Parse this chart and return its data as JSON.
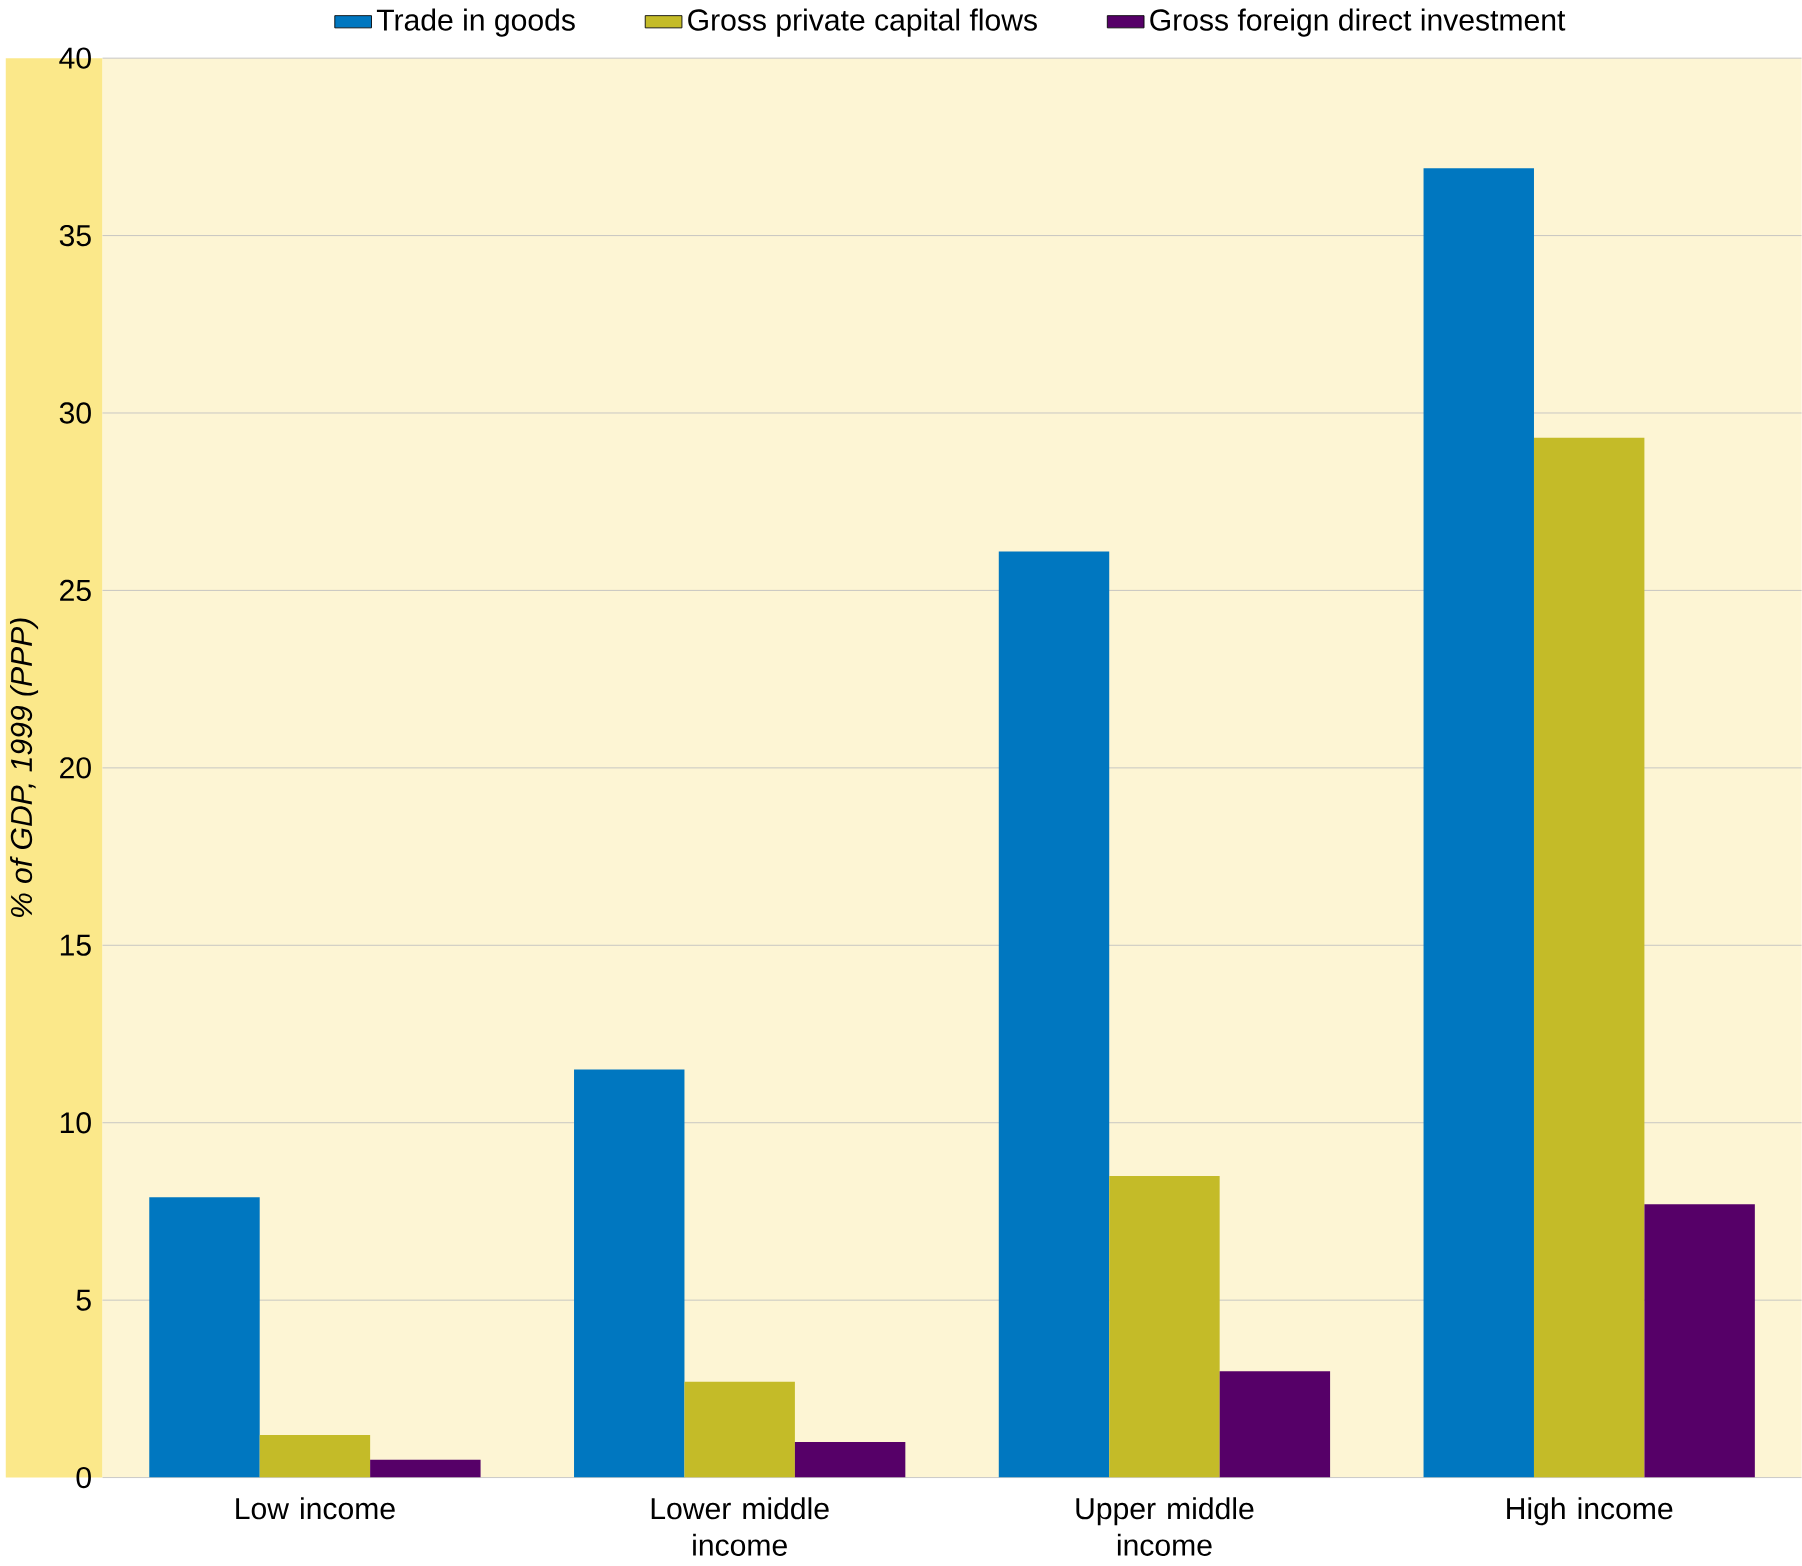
{
  "chart_data": {
    "type": "bar",
    "ylabel": "% of GDP, 1999 (PPP)",
    "categories": [
      "Low income",
      "Lower middle income",
      "Upper middle income",
      "High income"
    ],
    "series": [
      {
        "name": "Trade in goods",
        "color": "#0077c0",
        "values": [
          7.9,
          11.5,
          26.1,
          36.9
        ]
      },
      {
        "name": "Gross private capital flows",
        "color": "#c4bb28",
        "values": [
          1.2,
          2.7,
          8.5,
          29.3
        ]
      },
      {
        "name": "Gross foreign direct investment",
        "color": "#560068",
        "values": [
          0.5,
          1.0,
          3.0,
          7.7
        ]
      }
    ],
    "ylim": [
      0,
      40
    ],
    "yticks": [
      0,
      5,
      10,
      15,
      20,
      25,
      30,
      35,
      40
    ],
    "grid": "y",
    "legend": "top"
  }
}
